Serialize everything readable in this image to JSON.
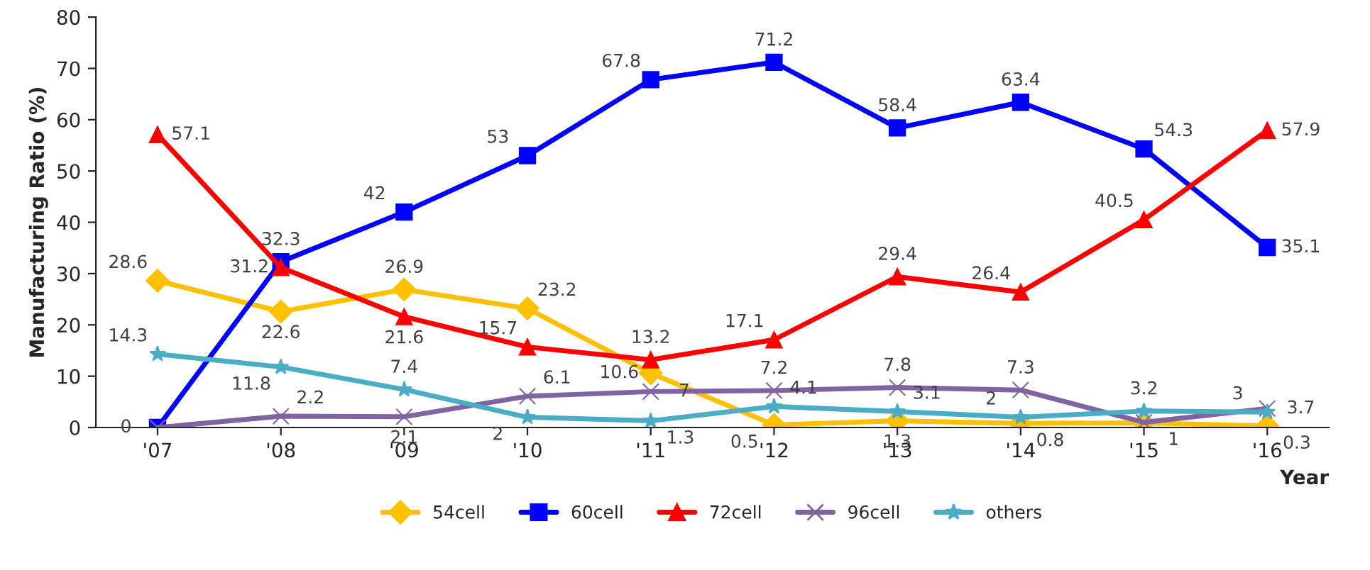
{
  "chart_data": {
    "type": "line",
    "ylabel": "Manufacturing Ratio (%)",
    "xlabel": "Year",
    "categories": [
      "'07",
      "'08",
      "'09",
      "'10",
      "'11",
      "'12",
      "'13",
      "'14",
      "'15",
      "'16"
    ],
    "ylim": [
      0,
      80
    ],
    "yticks": [
      0,
      10,
      20,
      30,
      40,
      50,
      60,
      70,
      80
    ],
    "grid": false,
    "legend": "bottom",
    "series": [
      {
        "name": "54cell",
        "color": "#ffc000",
        "marker": "diamond",
        "values": [
          28.6,
          22.6,
          26.9,
          23.2,
          10.6,
          0.5,
          1.3,
          0.8,
          0.9,
          0.3
        ],
        "value_labels": [
          "28.6",
          "22.6",
          "26.9",
          "23.2",
          "10.6",
          "0.5",
          "1.3",
          "0.8",
          null,
          "0.3"
        ]
      },
      {
        "name": "60cell",
        "color": "#0000ff",
        "marker": "square",
        "values": [
          0,
          32.3,
          42,
          53,
          67.8,
          71.2,
          58.4,
          63.4,
          54.3,
          35.1
        ],
        "value_labels": [
          "0",
          "32.3",
          "42",
          "53",
          "67.8",
          "71.2",
          "58.4",
          "63.4",
          "54.3",
          "35.1"
        ]
      },
      {
        "name": "72cell",
        "color": "#ff0000",
        "marker": "triangle",
        "values": [
          57.1,
          31.2,
          21.6,
          15.7,
          13.2,
          17.1,
          29.4,
          26.4,
          40.5,
          57.9
        ],
        "value_labels": [
          "57.1",
          "31.2",
          "21.6",
          "15.7",
          "13.2",
          "17.1",
          "29.4",
          "26.4",
          "40.5",
          "57.9"
        ]
      },
      {
        "name": "96cell",
        "color": "#8064a2",
        "marker": "cross",
        "values": [
          0,
          2.2,
          2.1,
          6.1,
          7,
          7.2,
          7.8,
          7.3,
          1,
          3.7
        ],
        "value_labels": [
          null,
          "2.2",
          "2.1",
          "6.1",
          "7",
          "7.2",
          "7.8",
          "7.3",
          "1",
          "3.7"
        ]
      },
      {
        "name": "others",
        "color": "#4bacc6",
        "marker": "star",
        "values": [
          14.3,
          11.8,
          7.4,
          2,
          1.3,
          4.1,
          3.1,
          2,
          3.2,
          3
        ],
        "value_labels": [
          "14.3",
          "11.8",
          "7.4",
          "2",
          "1.3",
          "4.1",
          "3.1",
          "2",
          "3.2",
          "3"
        ]
      }
    ]
  }
}
